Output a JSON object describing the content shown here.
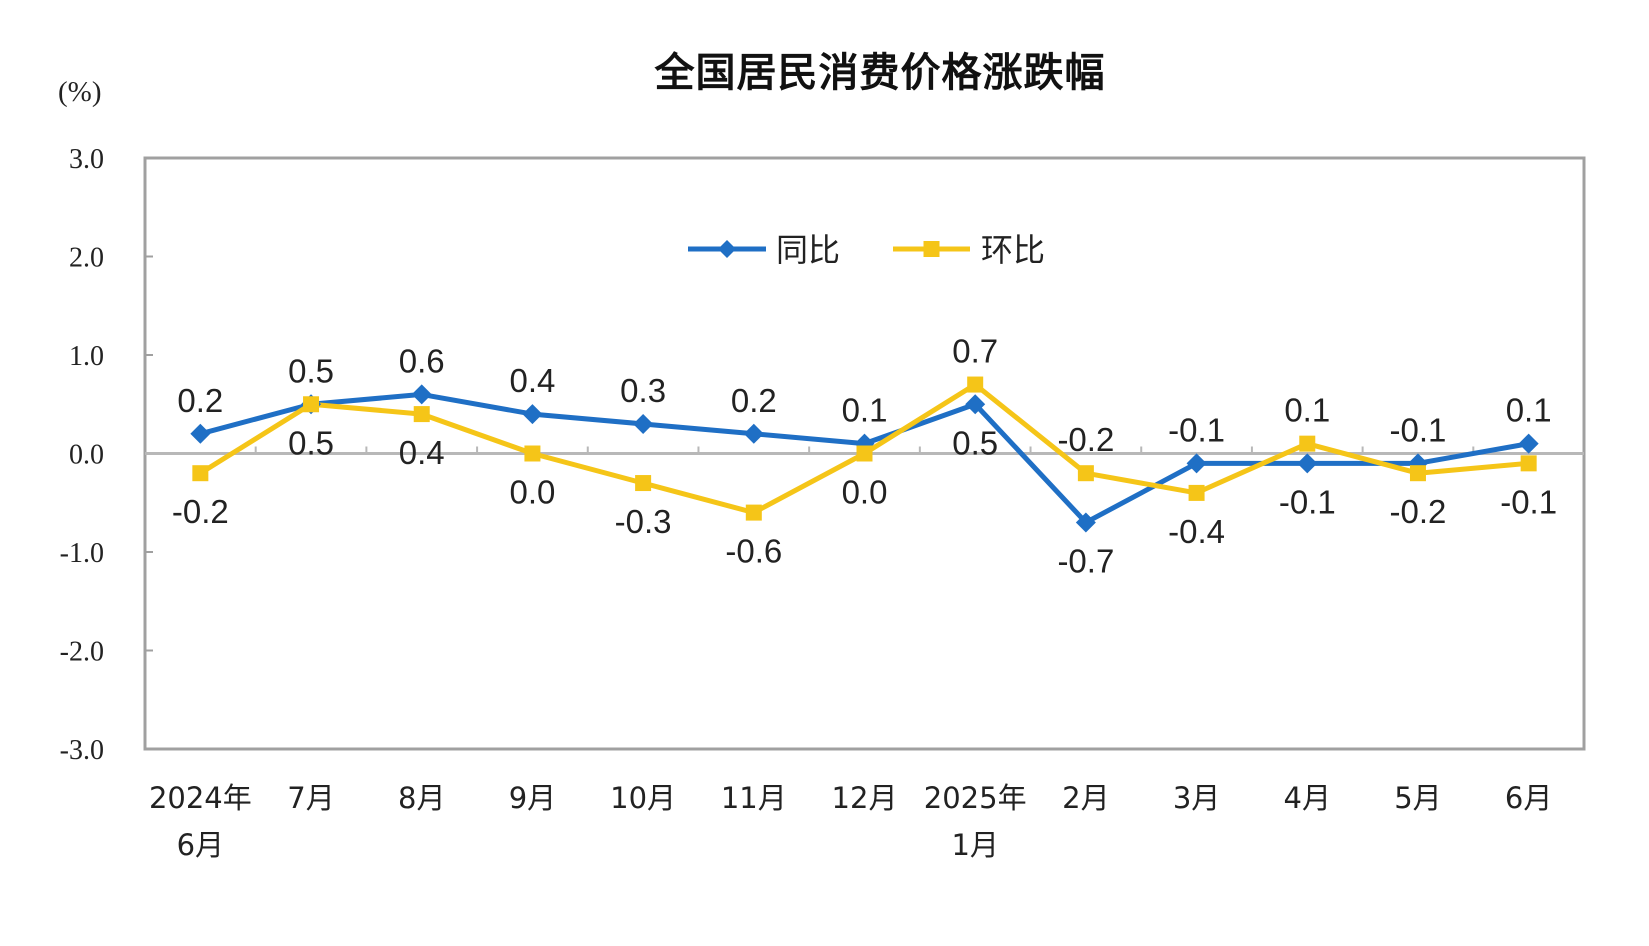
{
  "chart_data": {
    "type": "line",
    "title": "全国居民消费价格涨跌幅",
    "ylabel": "(%)",
    "xlabel": "",
    "ylim": [
      -3.0,
      3.0
    ],
    "yticks": [
      "3.0",
      "2.0",
      "1.0",
      "0.0",
      "-1.0",
      "-2.0",
      "-3.0"
    ],
    "categories": [
      [
        "2024年",
        "6月"
      ],
      [
        "7月"
      ],
      [
        "8月"
      ],
      [
        "9月"
      ],
      [
        "10月"
      ],
      [
        "11月"
      ],
      [
        "12月"
      ],
      [
        "2025年",
        "1月"
      ],
      [
        "2月"
      ],
      [
        "3月"
      ],
      [
        "4月"
      ],
      [
        "5月"
      ],
      [
        "6月"
      ]
    ],
    "legend_position": "top-center",
    "grid": false,
    "series": [
      {
        "name": "同比",
        "color": "#1f6fc5",
        "marker": "diamond",
        "values": [
          0.2,
          0.5,
          0.6,
          0.4,
          0.3,
          0.2,
          0.1,
          0.5,
          -0.7,
          -0.1,
          -0.1,
          -0.1,
          0.1
        ]
      },
      {
        "name": "环比",
        "color": "#f5c518",
        "marker": "square",
        "values": [
          -0.2,
          0.5,
          0.4,
          0.0,
          -0.3,
          -0.6,
          0.0,
          0.7,
          -0.2,
          -0.4,
          0.1,
          -0.2,
          -0.1
        ]
      }
    ]
  }
}
